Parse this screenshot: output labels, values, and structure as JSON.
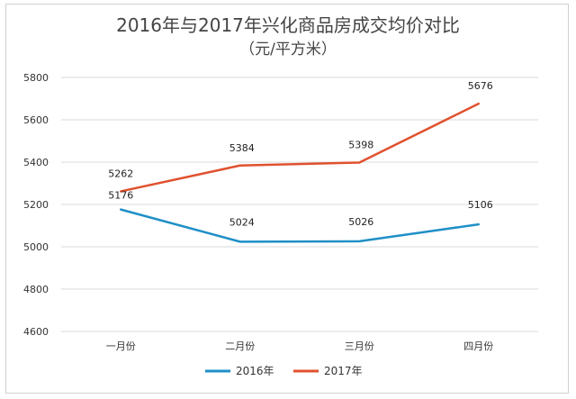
{
  "chart_data": {
    "type": "line",
    "title": "2016年与2017年兴化商品房成交均价对比",
    "subtitle": "（元/平方米）",
    "categories": [
      "一月份",
      "二月份",
      "三月份",
      "四月份"
    ],
    "series": [
      {
        "name": "2016年",
        "values": [
          5176,
          5024,
          5026,
          5106
        ],
        "color": "#1f8fc7"
      },
      {
        "name": "2017年",
        "values": [
          5262,
          5384,
          5398,
          5676
        ],
        "color": "#e0512e"
      }
    ],
    "ylim": [
      4600,
      5800
    ],
    "yticks": [
      "4600",
      "4800",
      "5000",
      "5200",
      "5400",
      "5600",
      "5800"
    ],
    "grid": true,
    "legend": "bottom",
    "gridColor": "#d9d9d9"
  }
}
